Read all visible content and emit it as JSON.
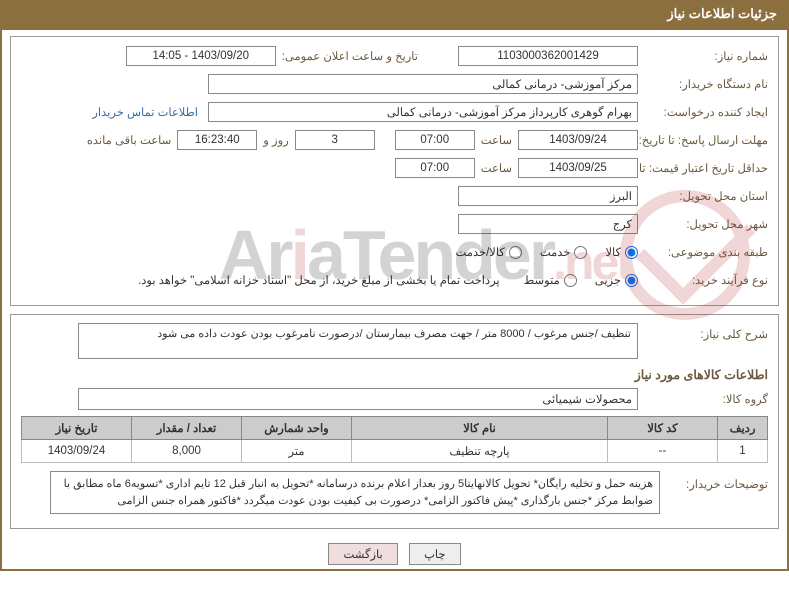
{
  "header": {
    "title": "جزئیات اطلاعات نیاز"
  },
  "fields": {
    "need_no_label": "شماره نیاز:",
    "need_no": "1103000362001429",
    "announce_label": "تاریخ و ساعت اعلان عمومی:",
    "announce_value": "1403/09/20 - 14:05",
    "buyer_org_label": "نام دستگاه خریدار:",
    "buyer_org": "مرکز آموزشی- درمانی کمالی",
    "requester_label": "ایجاد کننده درخواست:",
    "requester": "بهرام گوهری کارپرداز مرکز آموزشی- درمانی کمالی",
    "buyer_contact_link": "اطلاعات تماس خریدار",
    "deadline_label": "مهلت ارسال پاسخ: تا تاریخ:",
    "deadline_date": "1403/09/24",
    "hour_label": "ساعت",
    "deadline_hour": "07:00",
    "days_remaining": "3",
    "days_remaining_label": "روز و",
    "time_remaining": "16:23:40",
    "time_remaining_label": "ساعت باقی مانده",
    "min_valid_label": "حداقل تاریخ اعتبار قیمت: تا تاریخ:",
    "min_valid_date": "1403/09/25",
    "min_valid_hour": "07:00",
    "province_label": "استان محل تحویل:",
    "province": "البرز",
    "city_label": "شهر محل تحویل:",
    "city": "کرج",
    "category_label": "طبقه بندی موضوعی:",
    "cat_goods": "کالا",
    "cat_service": "خدمت",
    "cat_both": "کالا/خدمت",
    "purchase_proc_label": "نوع فرآیند خرید:",
    "proc_part": "جزیی",
    "proc_mid": "متوسط",
    "proc_note": "پرداخت تمام یا بخشی از مبلغ خرید، از محل \"اسناد خزانه اسلامی\" خواهد بود."
  },
  "general": {
    "desc_label": "شرح کلی نیاز:",
    "desc_text": "تنظیف /جنس مرغوب / 8000 متر / جهت مصرف بیمارستان /درصورت نامرغوب بودن عودت داده می شود"
  },
  "goods_section": {
    "title": "اطلاعات کالاهای مورد نیاز",
    "group_label": "گروه کالا:",
    "group_value": "محصولات شیمیائی"
  },
  "table": {
    "headers": {
      "row": "ردیف",
      "code": "کد کالا",
      "name": "نام کالا",
      "unit": "واحد شمارش",
      "qty": "تعداد / مقدار",
      "need_date": "تاریخ نیاز"
    },
    "rows": [
      {
        "row": "1",
        "code": "--",
        "name": "پارچه تنظیف",
        "unit": "متر",
        "qty": "8,000",
        "need_date": "1403/09/24"
      }
    ]
  },
  "buyer_notes": {
    "label": "توضیحات خریدار:",
    "text": "هزینه حمل و تخلیه رایگان* تحویل کالانهایتا5 روز بعداز اعلام برنده درسامانه *تحویل به انبار قبل 12 تایم اداری *تسویه6 ماه مطابق با ضوابط مرکز *جنس بارگذاری *پیش فاکتور الزامی* درصورت بی کیفیت بودن عودت میگردد *فاکتور همراه جنس الزامی"
  },
  "buttons": {
    "print": "چاپ",
    "back": "بازگشت"
  },
  "colors": {
    "header_bg": "#8b6f3e",
    "border": "#8b6f3e",
    "label_color": "#6b5a3e",
    "link_color": "#3a6ea5",
    "table_header_bg": "#cccccc",
    "watermark_red": "#b02020"
  }
}
